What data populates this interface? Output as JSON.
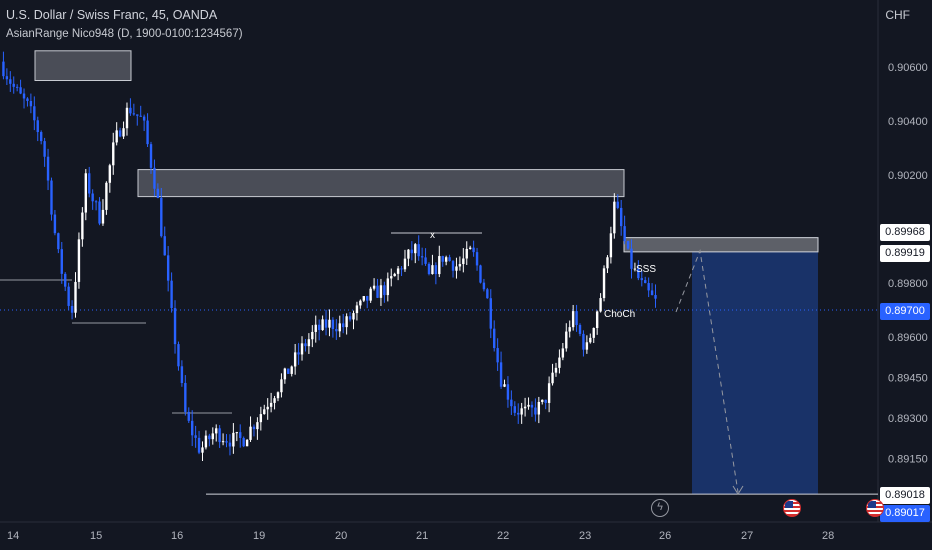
{
  "header": {
    "title": "U.S. Dollar / Swiss Franc, 45, OANDA",
    "indicator": "AsianRange Nico948 (D, 1900-0100:1234567)",
    "currency": "CHF"
  },
  "price_tags": {
    "t1": "0.89968",
    "t2": "0.89919",
    "t3": "0.89700",
    "t4": "0.89018",
    "t5": "0.89017"
  },
  "annotations": {
    "sss": "SSS",
    "choch": "ChoCh",
    "x": "x"
  },
  "icons": [
    "flash-icon",
    "us-flag-icon",
    "us-flag-icon"
  ],
  "colors": {
    "background": "#131722",
    "bull_candle": "#ffffff",
    "bear_candle": "#2962ff",
    "zone_fill": "#4a4d57",
    "target_zone": "#1c3a7a",
    "last_price": "#2962ff"
  },
  "chart_data": {
    "type": "candlestick",
    "symbol": "USDCHF",
    "interval": "45",
    "y_axis_ticks": [
      0.906,
      0.904,
      0.902,
      0.898,
      0.896,
      0.8945,
      0.893,
      0.8915
    ],
    "ylim": [
      0.8894,
      0.9078
    ],
    "x_axis_ticks": [
      "14",
      "15",
      "16",
      "19",
      "20",
      "21",
      "22",
      "23",
      "26",
      "27",
      "28"
    ],
    "last_price": 0.897,
    "price_path": [
      [
        0,
        0.9062
      ],
      [
        0.5,
        0.9052
      ],
      [
        1,
        0.9045
      ],
      [
        1.5,
        0.9032
      ],
      [
        2,
        0.8992
      ],
      [
        2.5,
        0.8968
      ],
      [
        3,
        0.9018
      ],
      [
        3.5,
        0.9004
      ],
      [
        4,
        0.9032
      ],
      [
        4.5,
        0.9045
      ],
      [
        5,
        0.904
      ],
      [
        5.5,
        0.9012
      ],
      [
        6,
        0.8968
      ],
      [
        6.5,
        0.893
      ],
      [
        7,
        0.8918
      ],
      [
        7.5,
        0.8925
      ],
      [
        8,
        0.8922
      ],
      [
        8.5,
        0.8922
      ],
      [
        9,
        0.893
      ],
      [
        9.5,
        0.8938
      ],
      [
        10,
        0.8946
      ],
      [
        10.5,
        0.8955
      ],
      [
        11,
        0.8962
      ],
      [
        11.5,
        0.8965
      ],
      [
        12,
        0.8964
      ],
      [
        12.5,
        0.897
      ],
      [
        13,
        0.8976
      ],
      [
        13.5,
        0.8978
      ],
      [
        14,
        0.8986
      ],
      [
        14.5,
        0.8993
      ],
      [
        15,
        0.8982
      ],
      [
        15.5,
        0.899
      ],
      [
        16,
        0.8986
      ],
      [
        16.5,
        0.8992
      ],
      [
        17,
        0.8976
      ],
      [
        17.5,
        0.8945
      ],
      [
        18,
        0.8933
      ],
      [
        18.5,
        0.8932
      ],
      [
        19,
        0.8935
      ],
      [
        19.5,
        0.895
      ],
      [
        20,
        0.8968
      ],
      [
        20.5,
        0.8955
      ],
      [
        21,
        0.8975
      ],
      [
        21.5,
        0.901
      ],
      [
        22,
        0.8988
      ],
      [
        22.5,
        0.8978
      ],
      [
        23,
        0.8972
      ]
    ],
    "zones": [
      {
        "name": "supply-1",
        "from": 0.9055,
        "to": 0.9066
      },
      {
        "name": "supply-2",
        "from": 0.9012,
        "to": 0.9022
      },
      {
        "name": "entry",
        "from": 0.89919,
        "to": 0.89968
      }
    ],
    "target": 0.89018,
    "levels": [
      0.89018,
      0.8984,
      0.8967
    ],
    "projection": [
      [
        0.8972,
        0.89919
      ],
      [
        0.89919,
        0.89018
      ]
    ],
    "annotations": [
      "SSS",
      "ChoCh",
      "x"
    ]
  }
}
